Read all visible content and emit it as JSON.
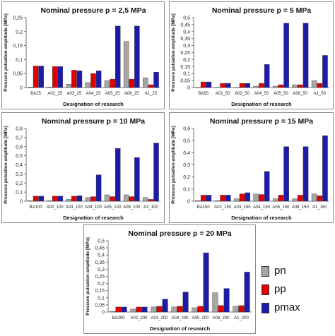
{
  "colors": {
    "pn": "#a6a6a6",
    "pp": "#e00000",
    "pmax": "#1c1ca8"
  },
  "legend": [
    {
      "key": "pn",
      "label": "pn"
    },
    {
      "key": "pp",
      "label": "pp"
    },
    {
      "key": "pmax",
      "label": "pmax"
    }
  ],
  "chart_data": [
    {
      "type": "bar",
      "title": "Nominal pressure p = 2,5 MPa",
      "xlabel": "Designation of research",
      "ylabel": "Pressure pulsation amplitude [MPa]",
      "ylim": [
        0,
        0.25
      ],
      "yticks": [
        0,
        0.05,
        0.1,
        0.15,
        0.2,
        0.25
      ],
      "ytick_labels": [
        "0",
        "0,05",
        "0,1",
        "0,15",
        "0,2",
        "0,25"
      ],
      "categories": [
        "BA25",
        "A02_25",
        "A03_25",
        "A04_25",
        "A05_25",
        "A08_25",
        "A1_25"
      ],
      "series": [
        {
          "name": "pn",
          "values": [
            0.002,
            0.002,
            0.012,
            0.018,
            0.025,
            0.165,
            0.035
          ]
        },
        {
          "name": "pp",
          "values": [
            0.077,
            0.075,
            0.062,
            0.05,
            0.03,
            0.03,
            0.01
          ]
        },
        {
          "name": "pmax",
          "values": [
            0.077,
            0.075,
            0.06,
            0.06,
            0.22,
            0.22,
            0.055
          ]
        }
      ]
    },
    {
      "type": "bar",
      "title": "Nominal pressure p = 5 MPa",
      "xlabel": "Designation of research",
      "ylabel": "Pressure pulsation amplitude [MPa]",
      "ylim": [
        0,
        0.5
      ],
      "yticks": [
        0,
        0.05,
        0.1,
        0.15,
        0.2,
        0.25,
        0.3,
        0.35,
        0.4,
        0.45,
        0.5
      ],
      "ytick_labels": [
        "0",
        "0,05",
        "0,1",
        "0,15",
        "0,2",
        "0,25",
        "0,3",
        "0,35",
        "0,4",
        "0,45",
        "0,5"
      ],
      "categories": [
        "BA50",
        "A02_50",
        "A03_50",
        "A04_50",
        "A05_50",
        "A08_50",
        "A1_50"
      ],
      "series": [
        {
          "name": "pn",
          "values": [
            0.002,
            0.002,
            0.002,
            0.01,
            0.01,
            0.02,
            0.05
          ]
        },
        {
          "name": "pp",
          "values": [
            0.04,
            0.03,
            0.03,
            0.03,
            0.02,
            0.02,
            0.03
          ]
        },
        {
          "name": "pmax",
          "values": [
            0.04,
            0.03,
            0.03,
            0.165,
            0.46,
            0.46,
            0.23
          ]
        }
      ]
    },
    {
      "type": "bar",
      "title": "Nominal pressure p = 10 MPa",
      "xlabel": "Designation of research",
      "ylabel": "Pressure pulsation amplitude [MPa]",
      "ylim": [
        0,
        0.8
      ],
      "yticks": [
        0,
        0.1,
        0.2,
        0.3,
        0.4,
        0.5,
        0.6,
        0.7,
        0.8
      ],
      "ytick_labels": [
        "0",
        "0,1",
        "0,2",
        "0,3",
        "0,4",
        "0,5",
        "0,6",
        "0,7",
        "0,8"
      ],
      "categories": [
        "BA100",
        "A02_100",
        "A03_100",
        "A04_100",
        "A05_100",
        "A08_100",
        "A1_100"
      ],
      "series": [
        {
          "name": "pn",
          "values": [
            0.005,
            0.005,
            0.02,
            0.04,
            0.07,
            0.07,
            0.04
          ]
        },
        {
          "name": "pp",
          "values": [
            0.055,
            0.055,
            0.055,
            0.05,
            0.05,
            0.05,
            0.02
          ]
        },
        {
          "name": "pmax",
          "values": [
            0.055,
            0.055,
            0.06,
            0.29,
            0.58,
            0.48,
            0.64
          ]
        }
      ]
    },
    {
      "type": "bar",
      "title": "Nominal pressure p = 15 MPa",
      "xlabel": "Designation of research",
      "ylabel": "Pressure pulsation amplitude [MPa]",
      "ylim": [
        0,
        0.6
      ],
      "yticks": [
        0,
        0.1,
        0.2,
        0.3,
        0.4,
        0.5,
        0.6
      ],
      "ytick_labels": [
        "0",
        "0,1",
        "0,2",
        "0,3",
        "0,4",
        "0,5",
        "0,6"
      ],
      "categories": [
        "BA150",
        "A02_150",
        "A03_150",
        "A04_150",
        "A05_150",
        "A08_150",
        "A1_150"
      ],
      "series": [
        {
          "name": "pn",
          "values": [
            0.005,
            0.005,
            0.02,
            0.06,
            0.02,
            0.02,
            0.06
          ]
        },
        {
          "name": "pp",
          "values": [
            0.05,
            0.05,
            0.06,
            0.055,
            0.05,
            0.05,
            0.045
          ]
        },
        {
          "name": "pmax",
          "values": [
            0.05,
            0.05,
            0.07,
            0.245,
            0.45,
            0.45,
            0.54
          ]
        }
      ]
    },
    {
      "type": "bar",
      "title": "Nominal pressure p = 20 MPa",
      "xlabel": "Designation of research",
      "ylabel": "Pressure pulsation amplitude [MPa]",
      "ylim": [
        0,
        0.5
      ],
      "yticks": [
        0,
        0.05,
        0.1,
        0.15,
        0.2,
        0.25,
        0.3,
        0.35,
        0.4,
        0.45,
        0.5
      ],
      "ytick_labels": [
        "0",
        "0,05",
        "0,1",
        "0,15",
        "0,2",
        "0,25",
        "0,3",
        "0,35",
        "0,4",
        "0,45",
        "0,5"
      ],
      "categories": [
        "BA200",
        "A02_200",
        "A03_200",
        "A04_200",
        "A05_200",
        "A08_200",
        "A1_200"
      ],
      "series": [
        {
          "name": "pn",
          "values": [
            0.005,
            0.02,
            0.035,
            0.035,
            0.03,
            0.135,
            0.04
          ]
        },
        {
          "name": "pp",
          "values": [
            0.035,
            0.035,
            0.04,
            0.04,
            0.04,
            0.045,
            0.045
          ]
        },
        {
          "name": "pmax",
          "values": [
            0.035,
            0.035,
            0.09,
            0.14,
            0.415,
            0.165,
            0.28
          ]
        }
      ]
    }
  ]
}
